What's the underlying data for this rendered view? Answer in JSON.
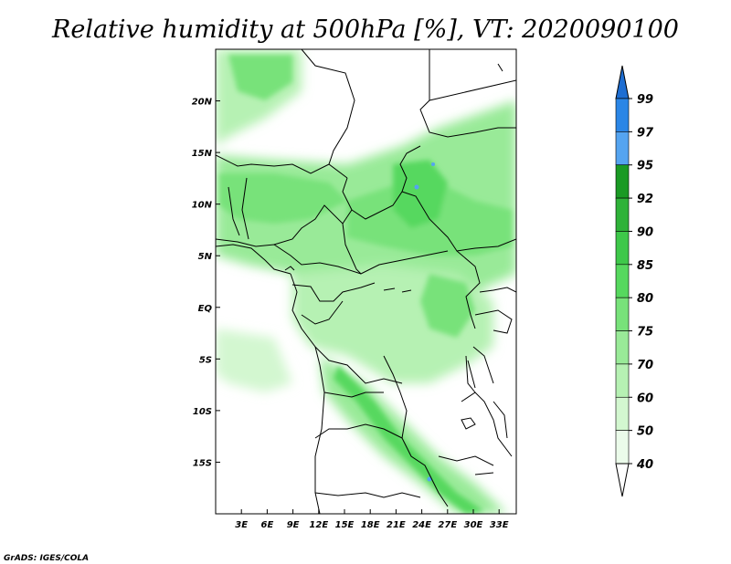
{
  "title": "Relative humidity at 500hPa [%], VT: 2020090100",
  "credit": "GrADS: IGES/COLA",
  "map": {
    "lon_range": [
      0,
      35
    ],
    "lat_range": [
      -20,
      25
    ],
    "lon_ticks": [
      "3E",
      "6E",
      "9E",
      "12E",
      "15E",
      "18E",
      "21E",
      "24E",
      "27E",
      "30E",
      "33E"
    ],
    "lat_ticks": [
      "20N",
      "15N",
      "10N",
      "5N",
      "EQ",
      "5S",
      "10S",
      "15S"
    ]
  },
  "legend": {
    "labels": [
      "99",
      "97",
      "95",
      "92",
      "90",
      "85",
      "80",
      "75",
      "70",
      "60",
      "50",
      "40"
    ],
    "colors": [
      "#1e6ed2",
      "#2b86e6",
      "#55a4f0",
      "#1a9a24",
      "#2fb239",
      "#3ec84a",
      "#56d85e",
      "#78e27a",
      "#99ea98",
      "#b6f1b3",
      "#d3f7d0",
      "#ebfbea"
    ]
  },
  "fields": [
    {
      "name": "humid-band-north",
      "color": "#78e27a"
    },
    {
      "name": "humid-band-south",
      "color": "#56d85e"
    }
  ]
}
